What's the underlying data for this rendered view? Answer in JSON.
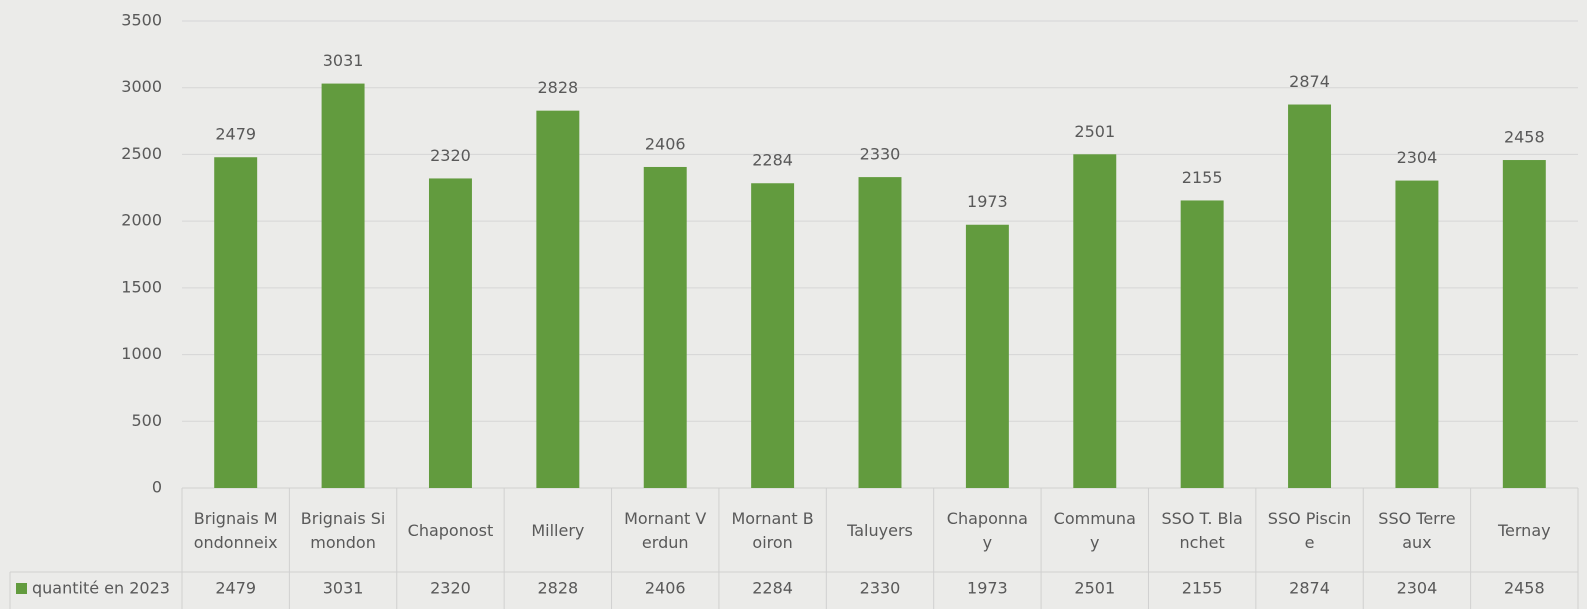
{
  "chart_data": {
    "type": "bar",
    "categories": [
      "Brignais Mondonneix",
      "Brignais Simondon",
      "Chaponost",
      "Millery",
      "Mornant Verdun",
      "Mornant Boiron",
      "Taluyers",
      "Chaponnay",
      "Communay",
      "SSO T. Blanchet",
      "SSO Piscine",
      "SSO Terreaux",
      "Ternay"
    ],
    "series": [
      {
        "name": "quantité en 2023",
        "color": "#629b3e",
        "values": [
          2479,
          3031,
          2320,
          2828,
          2406,
          2284,
          2330,
          1973,
          2501,
          2155,
          2874,
          2304,
          2458
        ]
      }
    ],
    "ylim": [
      0,
      3500
    ],
    "yticks": [
      0,
      500,
      1000,
      1500,
      2000,
      2500,
      3000,
      3500
    ],
    "grid": true,
    "data_labels": true,
    "data_table": true
  }
}
